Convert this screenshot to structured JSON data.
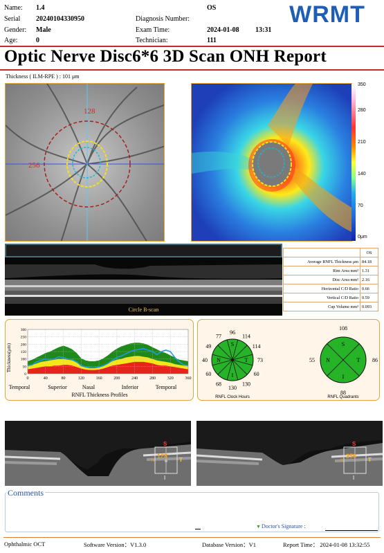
{
  "header": {
    "name_label": "Name:",
    "name_value": "1.4",
    "serial_label": "Serial",
    "serial_value": "20240104330950",
    "gender_label": "Gender:",
    "gender_value": "Male",
    "age_label": "Age:",
    "age_value": "0",
    "eye": "OS",
    "diagnosis_label": "Diagnosis Number:",
    "exam_label": "Exam Time:",
    "exam_date": "2024-01-08",
    "exam_time": "13:31",
    "technician_label": "Technician:",
    "technician_value": "111"
  },
  "logo_text": "WRMT",
  "title": "Optic Nerve Disc6*6 3D Scan ONH Report",
  "thickness_label": "Thickness ( ILM-RPE ) : 101 μm",
  "fundus": {
    "label_top": "128",
    "label_left": "256"
  },
  "colorbar": {
    "ticks": [
      "350",
      "280",
      "210",
      "140",
      "70",
      "0μm"
    ]
  },
  "bscan": {
    "label": "Circle B-scan"
  },
  "params": {
    "eye_header": "OS",
    "rows": [
      {
        "label": "Average RNFL Thickness μm",
        "value": "84.18"
      },
      {
        "label": "Rim Area mm²",
        "value": "1.31"
      },
      {
        "label": "Disc Area mm²",
        "value": "2.16"
      },
      {
        "label": "Horizontal C/D Ratio",
        "value": "0.66"
      },
      {
        "label": "Vertical C/D Ratio",
        "value": "0.59"
      },
      {
        "label": "Cup Volume mm³",
        "value": "0.093"
      }
    ]
  },
  "chart_data": {
    "type": "area",
    "title": "RNFL Thickness Profiles",
    "ylabel": "Thickness(μm)",
    "xlim": [
      0,
      360
    ],
    "ylim": [
      0,
      300
    ],
    "x_ticks": [
      0,
      40,
      80,
      120,
      160,
      200,
      240,
      280,
      320,
      360
    ],
    "y_ticks": [
      0,
      50,
      100,
      150,
      200,
      250,
      300
    ],
    "sector_labels": [
      "Temporal",
      "Superior",
      "Nasal",
      "Inferior",
      "Temporal"
    ],
    "x": [
      0,
      10,
      20,
      30,
      40,
      50,
      60,
      70,
      80,
      90,
      100,
      110,
      120,
      130,
      140,
      150,
      160,
      170,
      180,
      190,
      200,
      210,
      220,
      230,
      240,
      250,
      260,
      270,
      280,
      290,
      300,
      310,
      320,
      330,
      340,
      350,
      360
    ],
    "series": [
      {
        "values": [
          55,
          60,
          80,
          90,
          100,
          95,
          100,
          115,
          110,
          100,
          95,
          80,
          55,
          45,
          40,
          40,
          45,
          55,
          70,
          90,
          110,
          120,
          135,
          150,
          160,
          165,
          170,
          160,
          150,
          130,
          150,
          160,
          150,
          110,
          80,
          60,
          55
        ],
        "color": "#1e9be0"
      }
    ],
    "bands": [
      {
        "name": "red",
        "color": "#e8231c"
      },
      {
        "name": "yellow",
        "color": "#f4e61a"
      },
      {
        "name": "green",
        "color": "#1f8a1b"
      }
    ],
    "band_upper": {
      "red": [
        30,
        35,
        40,
        45,
        50,
        50,
        55,
        55,
        60,
        60,
        55,
        45,
        35,
        28,
        25,
        25,
        28,
        35,
        45,
        55,
        60,
        65,
        70,
        75,
        80,
        80,
        80,
        75,
        70,
        60,
        55,
        55,
        50,
        45,
        40,
        35,
        30
      ],
      "yellow": [
        55,
        60,
        70,
        80,
        85,
        90,
        95,
        100,
        100,
        95,
        90,
        75,
        55,
        45,
        40,
        40,
        45,
        55,
        70,
        85,
        95,
        100,
        110,
        115,
        120,
        120,
        115,
        110,
        100,
        90,
        85,
        80,
        75,
        65,
        60,
        55,
        55
      ],
      "green": [
        85,
        95,
        110,
        125,
        140,
        150,
        165,
        180,
        190,
        180,
        165,
        140,
        105,
        90,
        85,
        85,
        90,
        105,
        125,
        150,
        170,
        185,
        195,
        205,
        210,
        210,
        205,
        195,
        180,
        165,
        150,
        140,
        125,
        110,
        95,
        90,
        85
      ]
    }
  },
  "clock": {
    "hours": [
      "114",
      "114",
      "73",
      "60",
      "130",
      "130",
      "68",
      "60",
      "40",
      "49",
      "77",
      "96"
    ],
    "letters": {
      "s": "S",
      "t": "T",
      "i": "I",
      "n": "N"
    },
    "caption": "RNFL Clock Hours"
  },
  "quadrants": {
    "values": {
      "s": "108",
      "t": "86",
      "i": "88",
      "n": "55"
    },
    "letters": {
      "s": "S",
      "t": "T",
      "i": "I",
      "n": "N"
    },
    "caption": "RNFL Quadrants"
  },
  "oct_left": {
    "s": "S",
    "i": "I",
    "t": "T",
    "n": "N",
    "value": "128"
  },
  "oct_right": {
    "s": "S",
    "i": "I",
    "t": "T",
    "n": "N",
    "value": "256"
  },
  "comments": {
    "title": "Comments",
    "signature_label": "Doctor's Signature :"
  },
  "footer": {
    "left": "Ophthalmic OCT",
    "software": "Software Version：V1.3.0",
    "database": "Database Version：V1",
    "report": "Report Time： 2024-01-08 13:32:55"
  },
  "colors": {
    "accent_red": "#c4282a",
    "logo_blue": "#1f5eb5",
    "panel_orange": "#e8a33a"
  }
}
